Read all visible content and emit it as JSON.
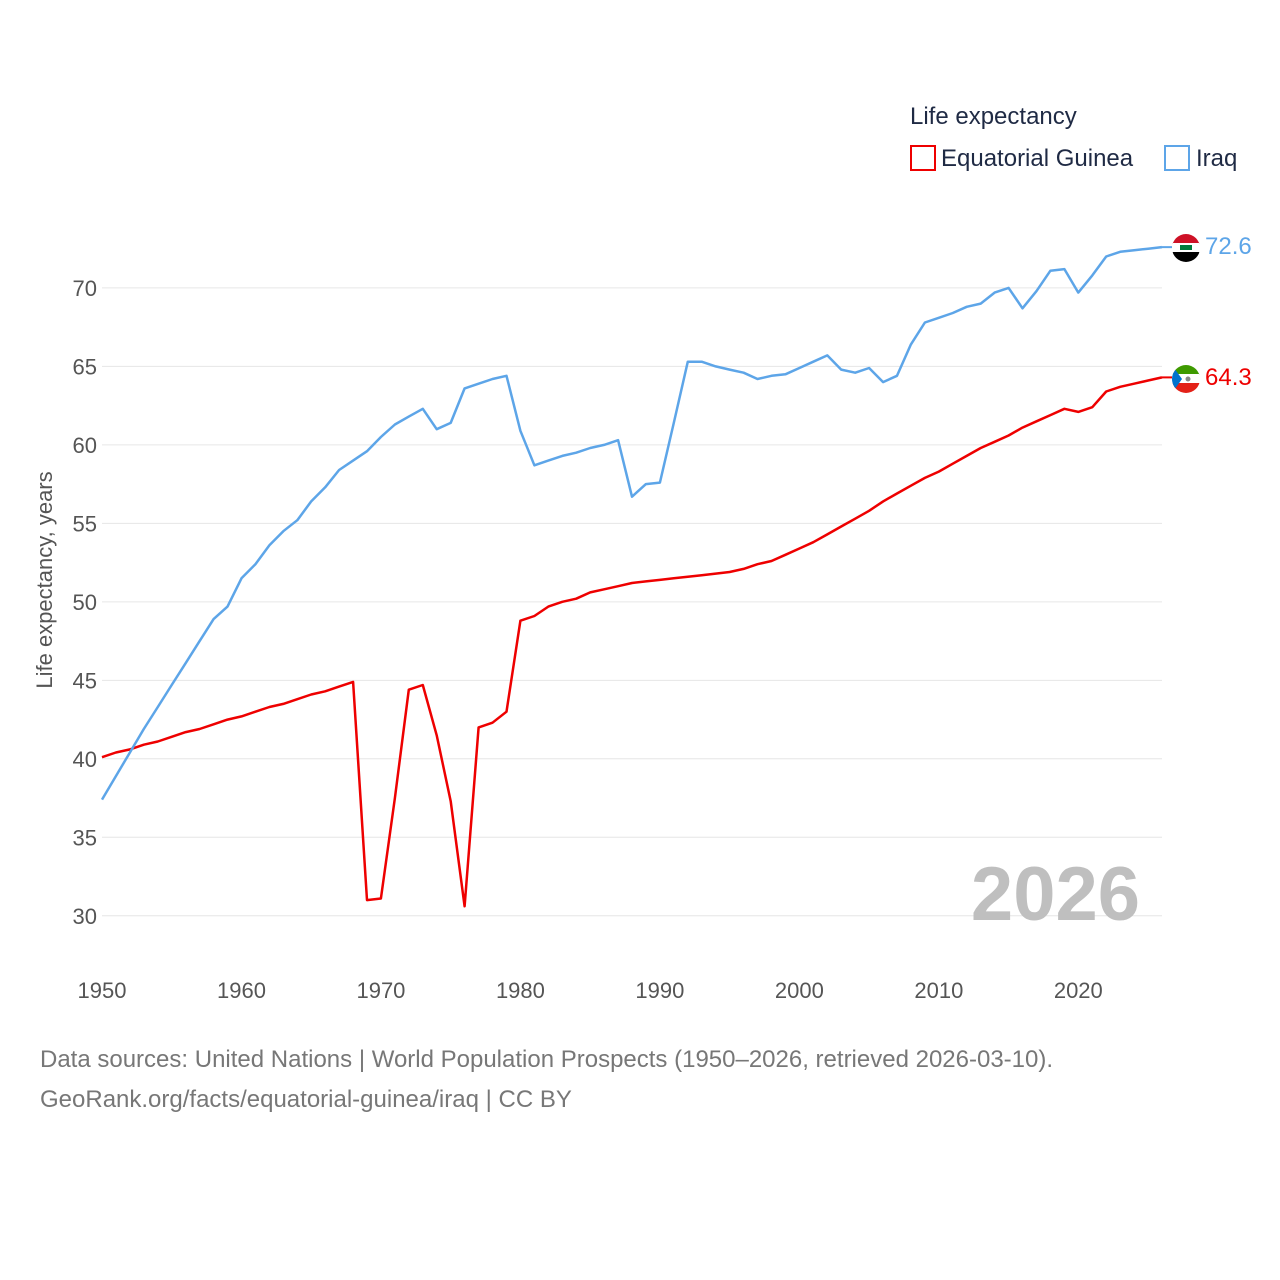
{
  "chart_data": {
    "type": "line",
    "title": "Life expectancy",
    "ylabel": "Life expectancy, years",
    "xlabel": "",
    "xlim": [
      1950,
      2026
    ],
    "ylim": [
      27.5,
      73.5
    ],
    "xticks": [
      "1950",
      "1960",
      "1970",
      "1980",
      "1990",
      "2000",
      "2010",
      "2020"
    ],
    "yticks": [
      "30",
      "35",
      "40",
      "45",
      "50",
      "55",
      "60",
      "65",
      "70"
    ],
    "year_label": "2026",
    "grid": true,
    "legend_position": "top-right",
    "series": [
      {
        "name": "Equatorial Guinea",
        "color": "#ee0000",
        "end_label": "64.3",
        "flag": "equatorial-guinea-flag",
        "x": [
          1950,
          1951,
          1952,
          1953,
          1954,
          1955,
          1956,
          1957,
          1958,
          1959,
          1960,
          1961,
          1962,
          1963,
          1964,
          1965,
          1966,
          1967,
          1968,
          1969,
          1970,
          1971,
          1972,
          1973,
          1974,
          1975,
          1976,
          1977,
          1978,
          1979,
          1980,
          1981,
          1982,
          1983,
          1984,
          1985,
          1986,
          1987,
          1988,
          1989,
          1990,
          1991,
          1992,
          1993,
          1994,
          1995,
          1996,
          1997,
          1998,
          1999,
          2000,
          2001,
          2002,
          2003,
          2004,
          2005,
          2006,
          2007,
          2008,
          2009,
          2010,
          2011,
          2012,
          2013,
          2014,
          2015,
          2016,
          2017,
          2018,
          2019,
          2020,
          2021,
          2022,
          2023,
          2024,
          2025,
          2026
        ],
        "values": [
          40.1,
          40.4,
          40.6,
          40.9,
          41.1,
          41.4,
          41.7,
          41.9,
          42.2,
          42.5,
          42.7,
          43.0,
          43.3,
          43.5,
          43.8,
          44.1,
          44.3,
          44.6,
          44.9,
          31.0,
          31.1,
          37.5,
          44.4,
          44.7,
          41.5,
          37.3,
          30.6,
          42.0,
          42.3,
          43.0,
          48.8,
          49.1,
          49.7,
          50.0,
          50.2,
          50.6,
          50.8,
          51.0,
          51.2,
          51.3,
          51.4,
          51.5,
          51.6,
          51.7,
          51.8,
          51.9,
          52.1,
          52.4,
          52.6,
          53.0,
          53.4,
          53.8,
          54.3,
          54.8,
          55.3,
          55.8,
          56.4,
          56.9,
          57.4,
          57.9,
          58.3,
          58.8,
          59.3,
          59.8,
          60.2,
          60.6,
          61.1,
          61.5,
          61.9,
          62.3,
          62.1,
          62.4,
          63.4,
          63.7,
          63.9,
          64.1,
          64.3
        ]
      },
      {
        "name": "Iraq",
        "color": "#5da5e8",
        "end_label": "72.6",
        "flag": "iraq-flag",
        "x": [
          1950,
          1951,
          1952,
          1953,
          1954,
          1955,
          1956,
          1957,
          1958,
          1959,
          1960,
          1961,
          1962,
          1963,
          1964,
          1965,
          1966,
          1967,
          1968,
          1969,
          1970,
          1971,
          1972,
          1973,
          1974,
          1975,
          1976,
          1977,
          1978,
          1979,
          1980,
          1981,
          1982,
          1983,
          1984,
          1985,
          1986,
          1987,
          1988,
          1989,
          1990,
          1991,
          1992,
          1993,
          1994,
          1995,
          1996,
          1997,
          1998,
          1999,
          2000,
          2001,
          2002,
          2003,
          2004,
          2005,
          2006,
          2007,
          2008,
          2009,
          2010,
          2011,
          2012,
          2013,
          2014,
          2015,
          2016,
          2017,
          2018,
          2019,
          2020,
          2021,
          2022,
          2023,
          2024,
          2025,
          2026
        ],
        "values": [
          37.4,
          38.9,
          40.4,
          41.9,
          43.3,
          44.7,
          46.1,
          47.5,
          48.9,
          49.7,
          51.5,
          52.4,
          53.6,
          54.5,
          55.2,
          56.4,
          57.3,
          58.4,
          59.0,
          59.6,
          60.5,
          61.3,
          61.8,
          62.3,
          61.0,
          61.4,
          63.6,
          63.9,
          64.2,
          64.4,
          60.9,
          58.7,
          59.0,
          59.3,
          59.5,
          59.8,
          60.0,
          60.3,
          56.7,
          57.5,
          57.6,
          61.4,
          65.3,
          65.3,
          65.0,
          64.8,
          64.6,
          64.2,
          64.4,
          64.5,
          64.9,
          65.3,
          65.7,
          64.8,
          64.6,
          64.9,
          64.0,
          64.4,
          66.4,
          67.8,
          68.1,
          68.4,
          68.8,
          69.0,
          69.7,
          70.0,
          68.7,
          69.8,
          71.1,
          71.2,
          69.7,
          70.8,
          72.0,
          72.3,
          72.4,
          72.5,
          72.6
        ]
      }
    ]
  },
  "legend": {
    "title": "Life expectancy",
    "items": [
      "Equatorial Guinea",
      "Iraq"
    ]
  },
  "footer": {
    "line1": "Data sources: United Nations | World Population Prospects (1950–2026, retrieved 2026-03-10).",
    "line2": "GeoRank.org/facts/equatorial-guinea/iraq | CC BY"
  }
}
